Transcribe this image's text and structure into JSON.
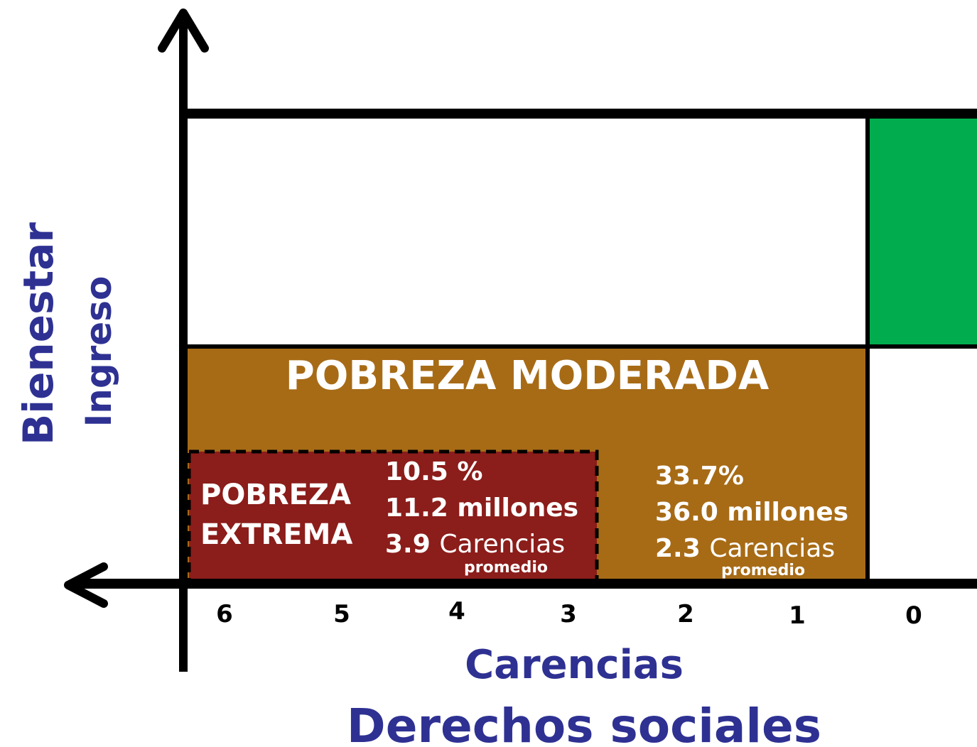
{
  "y_axis": {
    "title": "Bienestar",
    "subtitle": "Ingreso"
  },
  "x_axis": {
    "title": "Carencias",
    "subtitle": "Derechos sociales",
    "ticks": [
      "6",
      "5",
      "4",
      "3",
      "2",
      "1",
      "0"
    ]
  },
  "regions": {
    "moderate": {
      "title": "POBREZA MODERADA",
      "percent": "33.7%",
      "people": "36.0 millones",
      "average": "2.3",
      "average_label": "Carencias",
      "average_note": "promedio"
    },
    "extreme": {
      "title": [
        "POBREZA",
        "EXTREMA"
      ],
      "percent": "10.5 %",
      "people": "11.2 millones",
      "average": "3.9",
      "average_label": "Carencias",
      "average_note": "promedio"
    }
  }
}
